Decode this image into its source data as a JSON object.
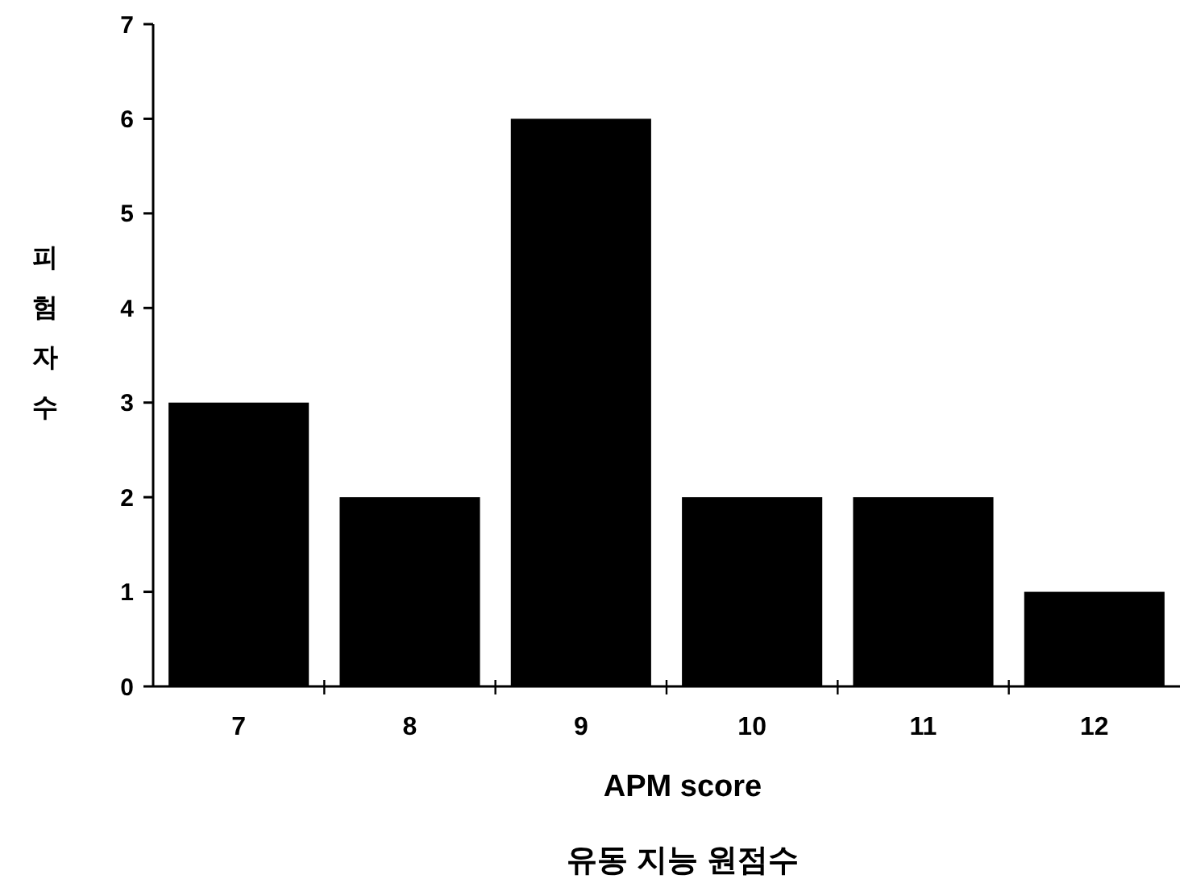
{
  "chart_data": {
    "type": "bar",
    "xlabel": "APM score",
    "ylabel": "피험자수",
    "categories": [
      "7",
      "8",
      "9",
      "10",
      "11",
      "12"
    ],
    "values": [
      3,
      2,
      6,
      2,
      2,
      1
    ],
    "color": "#000000",
    "ylim": [
      0,
      7
    ],
    "yticks": [
      0,
      1,
      2,
      3,
      4,
      5,
      6,
      7
    ],
    "annotations": [
      "유동 지능 원점수"
    ]
  }
}
